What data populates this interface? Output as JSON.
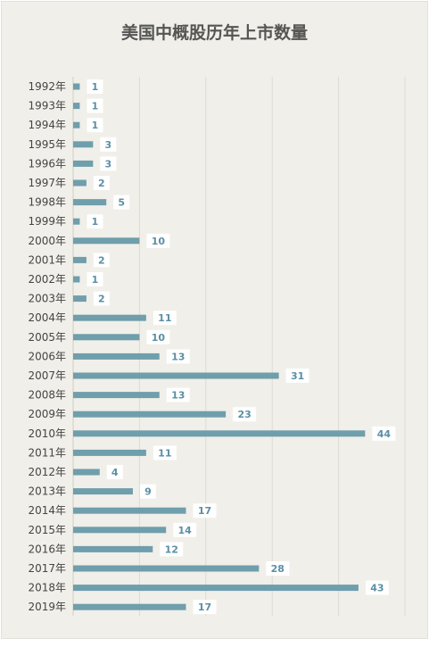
{
  "chart_data": {
    "type": "bar",
    "orientation": "horizontal",
    "title": "美国中概股历年上市数量",
    "categories": [
      "1992年",
      "1993年",
      "1994年",
      "1995年",
      "1996年",
      "1997年",
      "1998年",
      "1999年",
      "2000年",
      "2001年",
      "2002年",
      "2003年",
      "2004年",
      "2005年",
      "2006年",
      "2007年",
      "2008年",
      "2009年",
      "2010年",
      "2011年",
      "2012年",
      "2013年",
      "2014年",
      "2015年",
      "2016年",
      "2017年",
      "2018年",
      "2019年"
    ],
    "values": [
      1,
      1,
      1,
      3,
      3,
      2,
      5,
      1,
      10,
      2,
      1,
      2,
      11,
      10,
      13,
      31,
      13,
      23,
      44,
      11,
      4,
      9,
      17,
      14,
      12,
      28,
      43,
      17
    ],
    "xlim": [
      0,
      50
    ],
    "grid": true,
    "colors": {
      "bar": "#6f9eac",
      "label": "#5b8fa6",
      "grid": "#dddbd3"
    }
  }
}
